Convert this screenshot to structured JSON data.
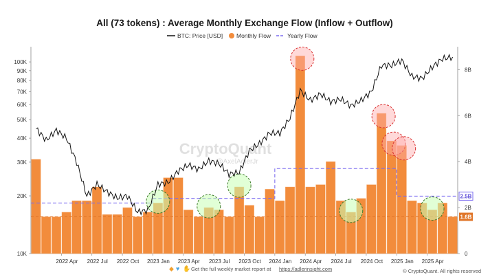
{
  "chart_data": {
    "type": "bar",
    "title": "All (73 tokens) : Average Monthly Exchange Flow (Inflow + Outflow)",
    "legend": [
      {
        "name": "BTC: Price [USD]",
        "kind": "line",
        "color": "#111111"
      },
      {
        "name": "Monthly Flow",
        "kind": "dot",
        "color": "#f28c3c"
      },
      {
        "name": "Yearly Flow",
        "kind": "dash",
        "color": "#7b6cf0"
      }
    ],
    "legend_position": "top-center",
    "x_ticks": [
      "2022 Apr",
      "2022 Jul",
      "2022 Oct",
      "2023 Jan",
      "2023 Apr",
      "2023 Jul",
      "2023 Oct",
      "2024 Jan",
      "2024 Apr",
      "2024 Jul",
      "2024 Oct",
      "2025 Jan",
      "2025 Apr"
    ],
    "left_axis": {
      "label": "BTC: Price [USD]",
      "scale": "log",
      "range": [
        10000,
        120000
      ],
      "ticks": [
        {
          "v": 10000,
          "t": "10K"
        },
        {
          "v": 20000,
          "t": "20K"
        },
        {
          "v": 30000,
          "t": "30K"
        },
        {
          "v": 40000,
          "t": "40K"
        },
        {
          "v": 50000,
          "t": "50K"
        },
        {
          "v": 60000,
          "t": "60K"
        },
        {
          "v": 70000,
          "t": "70K"
        },
        {
          "v": 80000,
          "t": "80K"
        },
        {
          "v": 90000,
          "t": "90K"
        },
        {
          "v": 100000,
          "t": "100K"
        }
      ]
    },
    "right_axis": {
      "label": "Monthly Flow",
      "scale": "linear",
      "range": [
        0,
        9.0
      ],
      "ticks": [
        {
          "v": 0,
          "t": "0"
        },
        {
          "v": 2,
          "t": "2B"
        },
        {
          "v": 4,
          "t": "4B"
        },
        {
          "v": 6,
          "t": "6B"
        },
        {
          "v": 8,
          "t": "8B"
        }
      ]
    },
    "monthly_flow": {
      "name": "Monthly Flow",
      "unit": "B",
      "months": [
        "2022-01",
        "2022-02",
        "2022-03",
        "2022-04",
        "2022-05",
        "2022-06",
        "2022-07",
        "2022-08",
        "2022-09",
        "2022-10",
        "2022-11",
        "2022-12",
        "2023-01",
        "2023-02",
        "2023-03",
        "2023-04",
        "2023-05",
        "2023-06",
        "2023-07",
        "2023-08",
        "2023-09",
        "2023-10",
        "2023-11",
        "2023-12",
        "2024-01",
        "2024-02",
        "2024-03",
        "2024-04",
        "2024-05",
        "2024-06",
        "2024-07",
        "2024-08",
        "2024-09",
        "2024-10",
        "2024-11",
        "2024-12",
        "2025-01",
        "2025-02",
        "2025-03",
        "2025-04",
        "2025-05",
        "2025-06"
      ],
      "values": [
        4.1,
        1.6,
        1.6,
        1.8,
        2.3,
        2.3,
        2.9,
        1.7,
        1.7,
        2.0,
        1.6,
        1.8,
        2.2,
        3.3,
        3.3,
        1.9,
        1.6,
        2.0,
        1.9,
        1.6,
        2.9,
        2.1,
        1.6,
        2.8,
        2.3,
        2.9,
        8.6,
        2.9,
        3.0,
        4.0,
        2.3,
        1.8,
        2.4,
        3.0,
        6.1,
        4.9,
        4.7,
        2.3,
        2.2,
        1.9,
        2.2,
        1.6
      ]
    },
    "yearly_flow": {
      "name": "Yearly Flow",
      "unit": "B",
      "segments": [
        {
          "start": "2022-01",
          "end": "2022-12",
          "value": 2.2
        },
        {
          "start": "2023-01",
          "end": "2023-12",
          "value": 2.4
        },
        {
          "start": "2024-01",
          "end": "2024-12",
          "value": 3.7
        },
        {
          "start": "2025-01",
          "end": "2025-06",
          "value": 2.5
        }
      ],
      "badge": "2.5B"
    },
    "baseline_flow": {
      "value": 1.6,
      "badge": "1.6B",
      "color": "#e0762a"
    },
    "btc_price_monthly": {
      "name": "BTC: Price [USD]",
      "months": [
        "2022-01",
        "2022-02",
        "2022-03",
        "2022-04",
        "2022-05",
        "2022-06",
        "2022-07",
        "2022-08",
        "2022-09",
        "2022-10",
        "2022-11",
        "2022-12",
        "2023-01",
        "2023-02",
        "2023-03",
        "2023-04",
        "2023-05",
        "2023-06",
        "2023-07",
        "2023-08",
        "2023-09",
        "2023-10",
        "2023-11",
        "2023-12",
        "2024-01",
        "2024-02",
        "2024-03",
        "2024-04",
        "2024-05",
        "2024-06",
        "2024-07",
        "2024-08",
        "2024-09",
        "2024-10",
        "2024-11",
        "2024-12",
        "2025-01",
        "2025-02",
        "2025-03",
        "2025-04",
        "2025-05",
        "2025-06"
      ],
      "values": [
        45000,
        39000,
        44000,
        40000,
        30000,
        20000,
        23000,
        21000,
        19500,
        20000,
        16500,
        16800,
        23000,
        23500,
        27000,
        29000,
        27500,
        30500,
        29500,
        26000,
        26500,
        34500,
        37500,
        42500,
        42500,
        51000,
        71000,
        63000,
        68000,
        62000,
        64000,
        59000,
        63000,
        70000,
        96000,
        96000,
        102000,
        84000,
        82000,
        94000,
        104000,
        106000
      ]
    },
    "highlight_circles_high": [
      "2024-03",
      "2024-11",
      "2024-12",
      "2025-01"
    ],
    "highlight_circles_low": [
      "2023-01",
      "2023-06",
      "2023-09",
      "2024-08",
      "2025-04"
    ],
    "grid": false
  },
  "watermark": {
    "text": "CryptoQuant",
    "sub": "@AxelAdlerJr"
  },
  "footer": {
    "icons": [
      "diamond-icon",
      "heart-icon",
      "hands-icon"
    ],
    "text": "Get the full weekly market report at",
    "link": "https://adlerinsight.com",
    "copyright": "© CryptoQuant. All rights reserved"
  }
}
